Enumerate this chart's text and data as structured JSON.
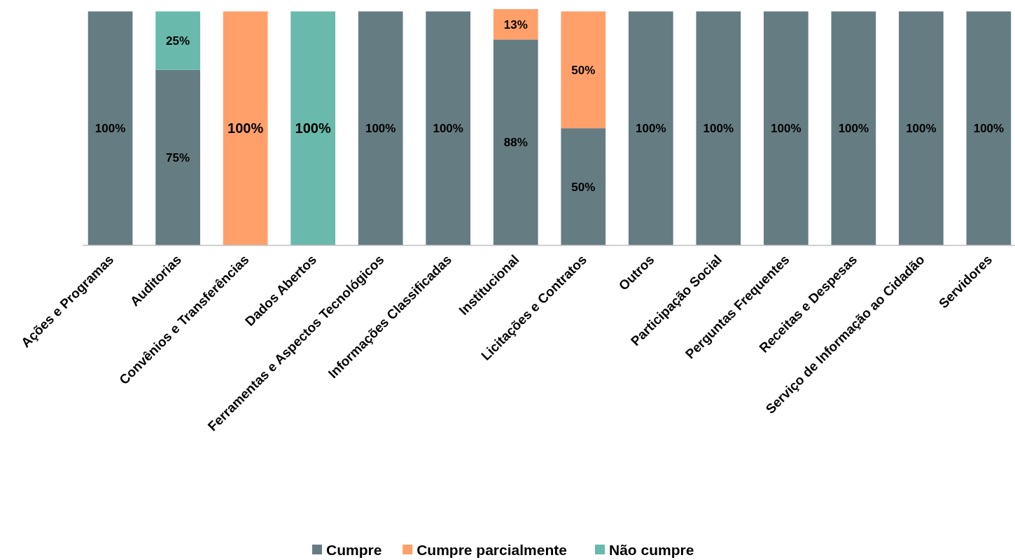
{
  "chart_data": {
    "type": "bar",
    "stacked": true,
    "legend": "bottom",
    "categories": [
      "Ações e Programas",
      "Auditorias",
      "Convênios e Transferências",
      "Dados Abertos",
      "Ferramentas e Aspectos Tecnológicos",
      "Informações Classificadas",
      "Institucional",
      "Licitações e Contratos",
      "Outros",
      "Participação Social",
      "Perguntas Frequentes",
      "Receitas e Despesas",
      "Serviço de Informação ao Cidadão",
      "Servidores"
    ],
    "series": [
      {
        "name": "Cumpre",
        "color": "#667c83",
        "values": [
          100,
          75,
          0,
          0,
          100,
          100,
          88,
          50,
          100,
          100,
          100,
          100,
          100,
          100
        ],
        "value_labels": [
          "100%",
          "75%",
          null,
          null,
          "100%",
          "100%",
          "88%",
          "50%",
          "100%",
          "100%",
          "100%",
          "100%",
          "100%",
          "100%"
        ]
      },
      {
        "name": "Cumpre parcialmente",
        "color": "#ffa06a",
        "values": [
          0,
          0,
          100,
          0,
          0,
          0,
          13,
          50,
          0,
          0,
          0,
          0,
          0,
          0
        ],
        "value_labels": [
          null,
          null,
          "100%",
          null,
          null,
          null,
          "13%",
          "50%",
          null,
          null,
          null,
          null,
          null,
          null
        ]
      },
      {
        "name": "Não cumpre",
        "color": "#69b9ad",
        "values": [
          0,
          25,
          0,
          100,
          0,
          0,
          0,
          0,
          0,
          0,
          0,
          0,
          0,
          0
        ],
        "value_labels": [
          null,
          "25%",
          null,
          "100%",
          null,
          null,
          null,
          null,
          null,
          null,
          null,
          null,
          null,
          null
        ]
      }
    ]
  }
}
